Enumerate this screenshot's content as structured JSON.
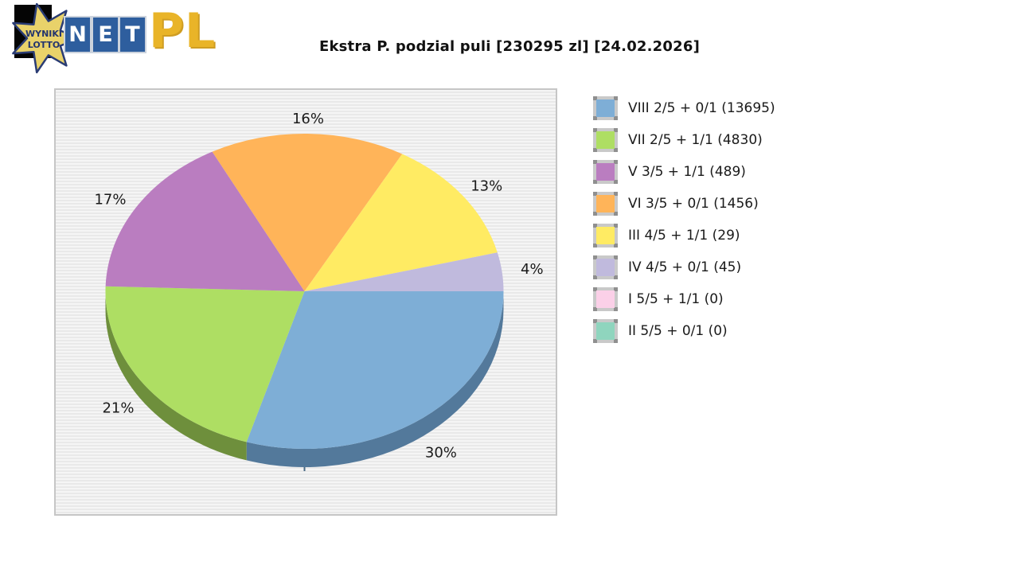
{
  "header": {
    "title": "Ekstra P. podzial puli [230295 zl] [24.02.2026]"
  },
  "logo": {
    "star_line1": "WYNIKI",
    "star_line2": "LOTTO",
    "net_letters": [
      "N",
      "E",
      "T"
    ],
    "pl": "PL",
    "colors": {
      "star_fill": "#E9D26A",
      "star_stroke": "#2A3C74",
      "tile_blue": "#2E5E9E",
      "pl_gold": "#E9B428"
    }
  },
  "chart_data": {
    "type": "pie",
    "style": "3d",
    "title": "Ekstra P. podzial puli [230295 zl] [24.02.2026]",
    "unit": "%",
    "legend_position": "right",
    "start_angle_deg_clockwise_from_3oclock": 0,
    "slices": [
      {
        "tier": "VIII 2/5 + 0/1",
        "count": 13695,
        "pct": 30,
        "color": "#7EAED6",
        "side_color": "#53799B"
      },
      {
        "tier": "VII 2/5 + 1/1",
        "count": 4830,
        "pct": 21,
        "color": "#AEDE63",
        "side_color": "#6E8F3C"
      },
      {
        "tier": "V 3/5 + 1/1",
        "count": 489,
        "pct": 17,
        "color": "#BA7DC0",
        "side_color": "#8A5A8F"
      },
      {
        "tier": "VI 3/5 + 0/1",
        "count": 1456,
        "pct": 16,
        "color": "#FFB459",
        "side_color": "#C28234"
      },
      {
        "tier": "III 4/5 + 1/1",
        "count": 29,
        "pct": 13,
        "color": "#FFEB63",
        "side_color": "#C2B33E"
      },
      {
        "tier": "IV 4/5 + 0/1",
        "count": 45,
        "pct": 4,
        "color": "#C0BADD",
        "side_color": "#8F89AC"
      },
      {
        "tier": "I 5/5 + 1/1",
        "count": 0,
        "pct": 0,
        "color": "#FBD0E8",
        "side_color": "#C79FB8"
      },
      {
        "tier": "II 5/5 + 0/1",
        "count": 0,
        "pct": 0,
        "color": "#8FD5BE",
        "side_color": "#62A28E"
      }
    ]
  }
}
